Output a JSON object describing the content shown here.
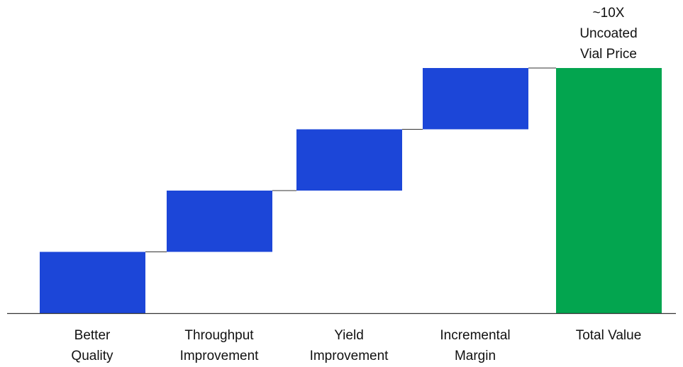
{
  "chart_data": {
    "type": "bar",
    "subtype": "waterfall",
    "categories": [
      "Better\nQuality",
      "Throughput\nImprovement",
      "Yield\nImprovement",
      "Incremental\nMargin",
      "Total Value"
    ],
    "steps": [
      {
        "category": "Better\nQuality",
        "start": 0,
        "end": 1
      },
      {
        "category": "Throughput\nImprovement",
        "start": 1,
        "end": 2
      },
      {
        "category": "Yield\nImprovement",
        "start": 2,
        "end": 3
      },
      {
        "category": "Incremental\nMargin",
        "start": 3,
        "end": 4
      },
      {
        "category": "Total Value",
        "start": 0,
        "end": 4,
        "is_total": true
      }
    ],
    "annotations": [
      {
        "category": "Total Value",
        "text": "~10X\nUncoated\nVial Price"
      }
    ],
    "ylim": [
      0,
      4
    ],
    "y_axis_visible": false,
    "grid": false,
    "colors": {
      "increment": "#1c46d8",
      "total": "#03a54f",
      "connector": "#333333",
      "axis": "#333333"
    }
  }
}
